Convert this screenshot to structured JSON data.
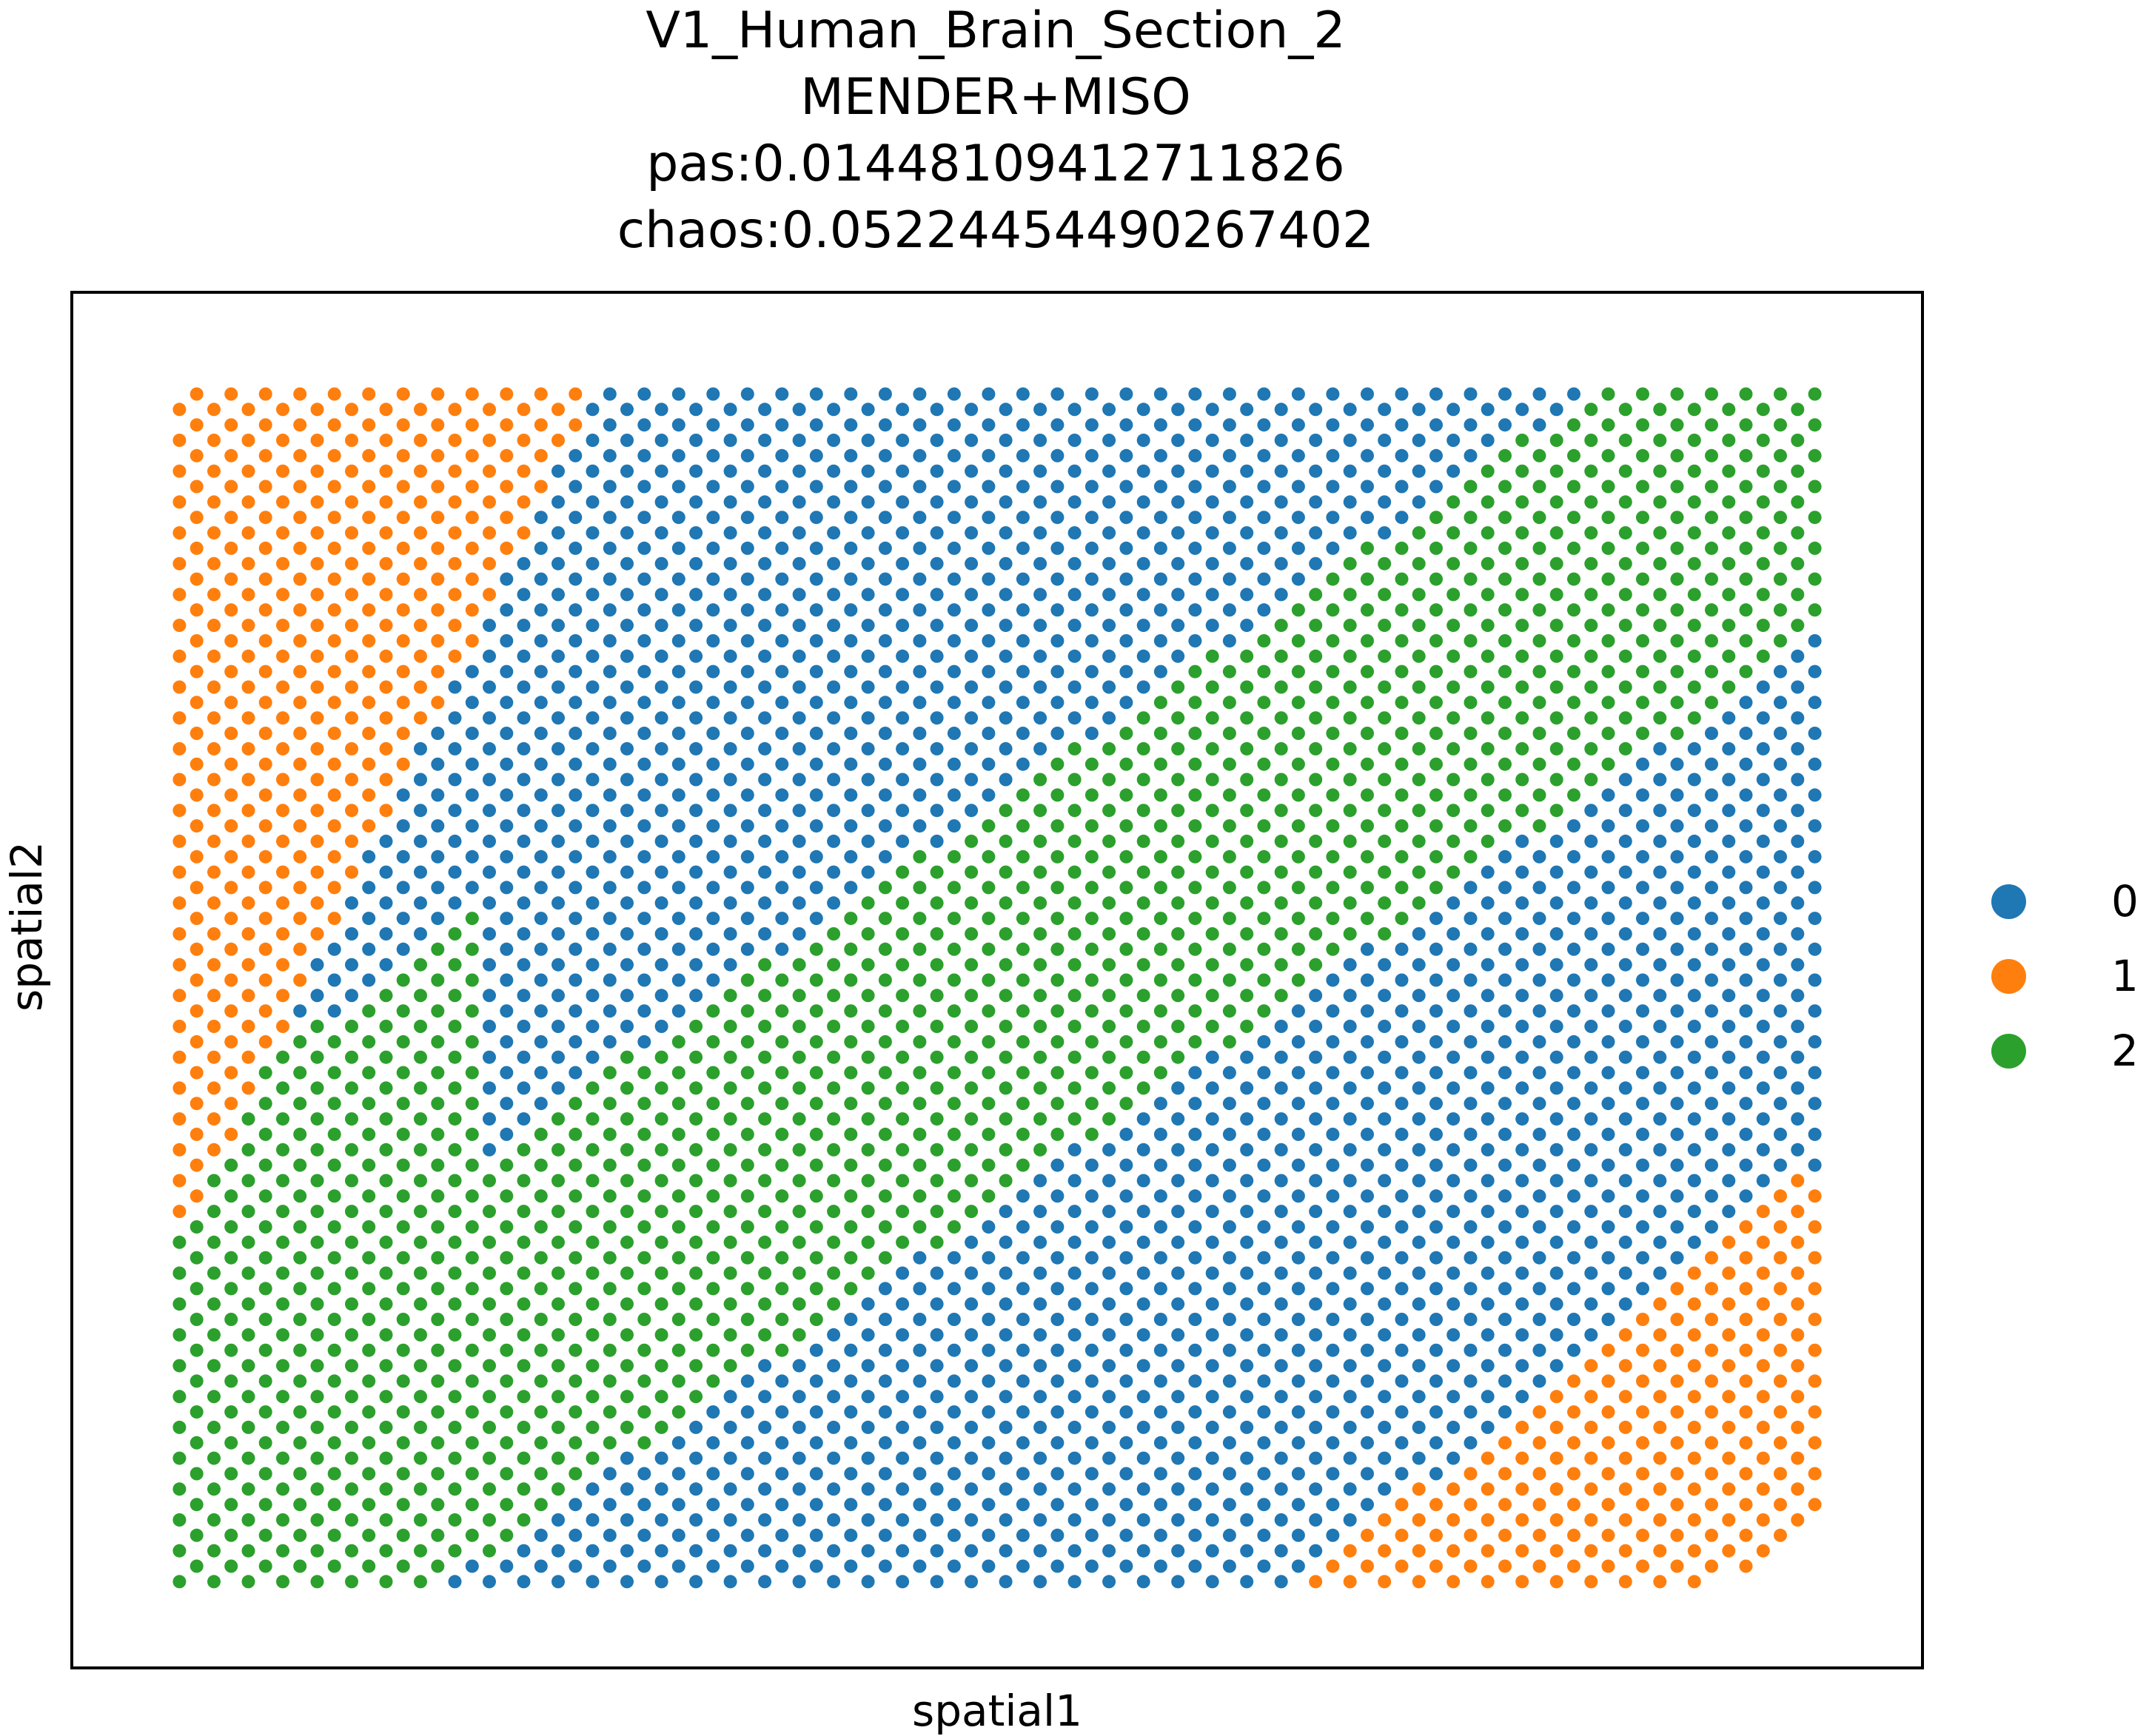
{
  "chart_data": {
    "type": "scatter",
    "title": [
      "V1_Human_Brain_Section_2",
      "MENDER+MISO",
      "pas:0.01448109412711826",
      "chaos:0.05224454490267402"
    ],
    "xlabel": "spatial1",
    "ylabel": "spatial2",
    "xlim": [
      -5,
      82
    ],
    "ylim": [
      -5.5,
      83.5
    ],
    "grid": false,
    "legend": {
      "placement": "right",
      "entries": [
        "0",
        "1",
        "2"
      ]
    },
    "colors": {
      "0": "#1f77b4",
      "1": "#ff7f0e",
      "2": "#2ca02c"
    },
    "point_layout": {
      "grid": "hexagonal spot array, 78 rows x 48 spots per row, odd rows offset by half a column",
      "x_range": [
        0,
        77
      ],
      "y_range": [
        0,
        77
      ]
    },
    "regions": [
      {
        "label": "1",
        "x_range": [
          0,
          19.5
        ],
        "y_range": [
          22,
          77
        ],
        "description": "upper-left wedge; boundary x runs from 19.5 at y=77 to 0 at y=22"
      },
      {
        "label": "0",
        "x_range": [
          0,
          77
        ],
        "y_range": [
          0,
          77
        ],
        "description": "two diagonal bands: upper-middle band and lower-right band, plus bottom-left corner"
      },
      {
        "label": "2",
        "x_range": [
          0,
          77
        ],
        "y_range": [
          0,
          77
        ],
        "description": "diagonal band from upper-right edge to lower-left, plus small left-edge strip near bottom"
      },
      {
        "label": "1",
        "x_range": [
          53,
          77
        ],
        "y_range": [
          0,
          27
        ],
        "description": "lower-right wedge; boundary x runs from 77 at y=27 to 53 at y=0"
      }
    ]
  }
}
